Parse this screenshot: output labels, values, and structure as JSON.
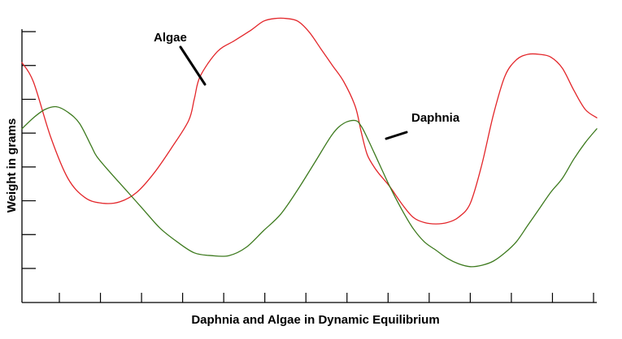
{
  "chart_data": {
    "type": "line",
    "title": "",
    "xlabel": "Daphnia and Algae in Dynamic Equilibrium",
    "ylabel": "Weight in grams",
    "grid": false,
    "legend": "none",
    "x_tick_count": 14,
    "y_tick_count": 8,
    "xlim": [
      0,
      100
    ],
    "ylim": [
      0,
      100
    ],
    "series": [
      {
        "name": "Algae",
        "color": "#e3262a",
        "x": [
          0,
          2,
          5,
          8,
          11,
          14,
          17,
          20,
          23,
          26,
          29,
          30,
          31,
          34,
          37,
          40,
          42,
          44,
          46,
          48,
          50,
          52,
          54,
          56,
          58,
          59,
          60,
          61,
          62,
          64,
          66,
          68,
          70,
          72,
          74,
          76,
          78,
          80,
          82,
          84,
          86,
          88,
          90,
          92,
          94,
          96,
          98,
          100
        ],
        "y": [
          87,
          80,
          60,
          45,
          38,
          36,
          36.5,
          40,
          47,
          56,
          66,
          74,
          82,
          91,
          95,
          99,
          102,
          103,
          103,
          102,
          98,
          92,
          86,
          80,
          71,
          62,
          54,
          50,
          47,
          42,
          36,
          31,
          29,
          28.5,
          29,
          31,
          36,
          50,
          68,
          82,
          88,
          90,
          90,
          89,
          85,
          77,
          70,
          67
        ]
      },
      {
        "name": "Daphnia",
        "color": "#3d7a1e",
        "x": [
          0,
          2,
          4,
          6,
          8,
          10,
          12,
          13,
          15,
          18,
          21,
          24,
          27,
          30,
          33,
          36,
          39,
          42,
          45,
          48,
          51,
          54,
          56,
          58,
          59,
          60,
          62,
          64,
          66,
          68,
          70,
          72,
          74,
          76,
          78,
          80,
          82,
          84,
          86,
          88,
          90,
          92,
          94,
          96,
          98,
          100
        ],
        "y": [
          63,
          67,
          70,
          71,
          69,
          65,
          57,
          53,
          48,
          41,
          34,
          27,
          22,
          18,
          17,
          17,
          20,
          26,
          32,
          41,
          51,
          61,
          65,
          66,
          64,
          60,
          51,
          42,
          34,
          27,
          22,
          19,
          16,
          14,
          13,
          13.5,
          15,
          18,
          22,
          28,
          34,
          40,
          45,
          52,
          58,
          63
        ]
      }
    ],
    "annotations": [
      {
        "text": "Algae",
        "target": "Algae"
      },
      {
        "text": "Daphnia",
        "target": "Daphnia"
      }
    ]
  }
}
